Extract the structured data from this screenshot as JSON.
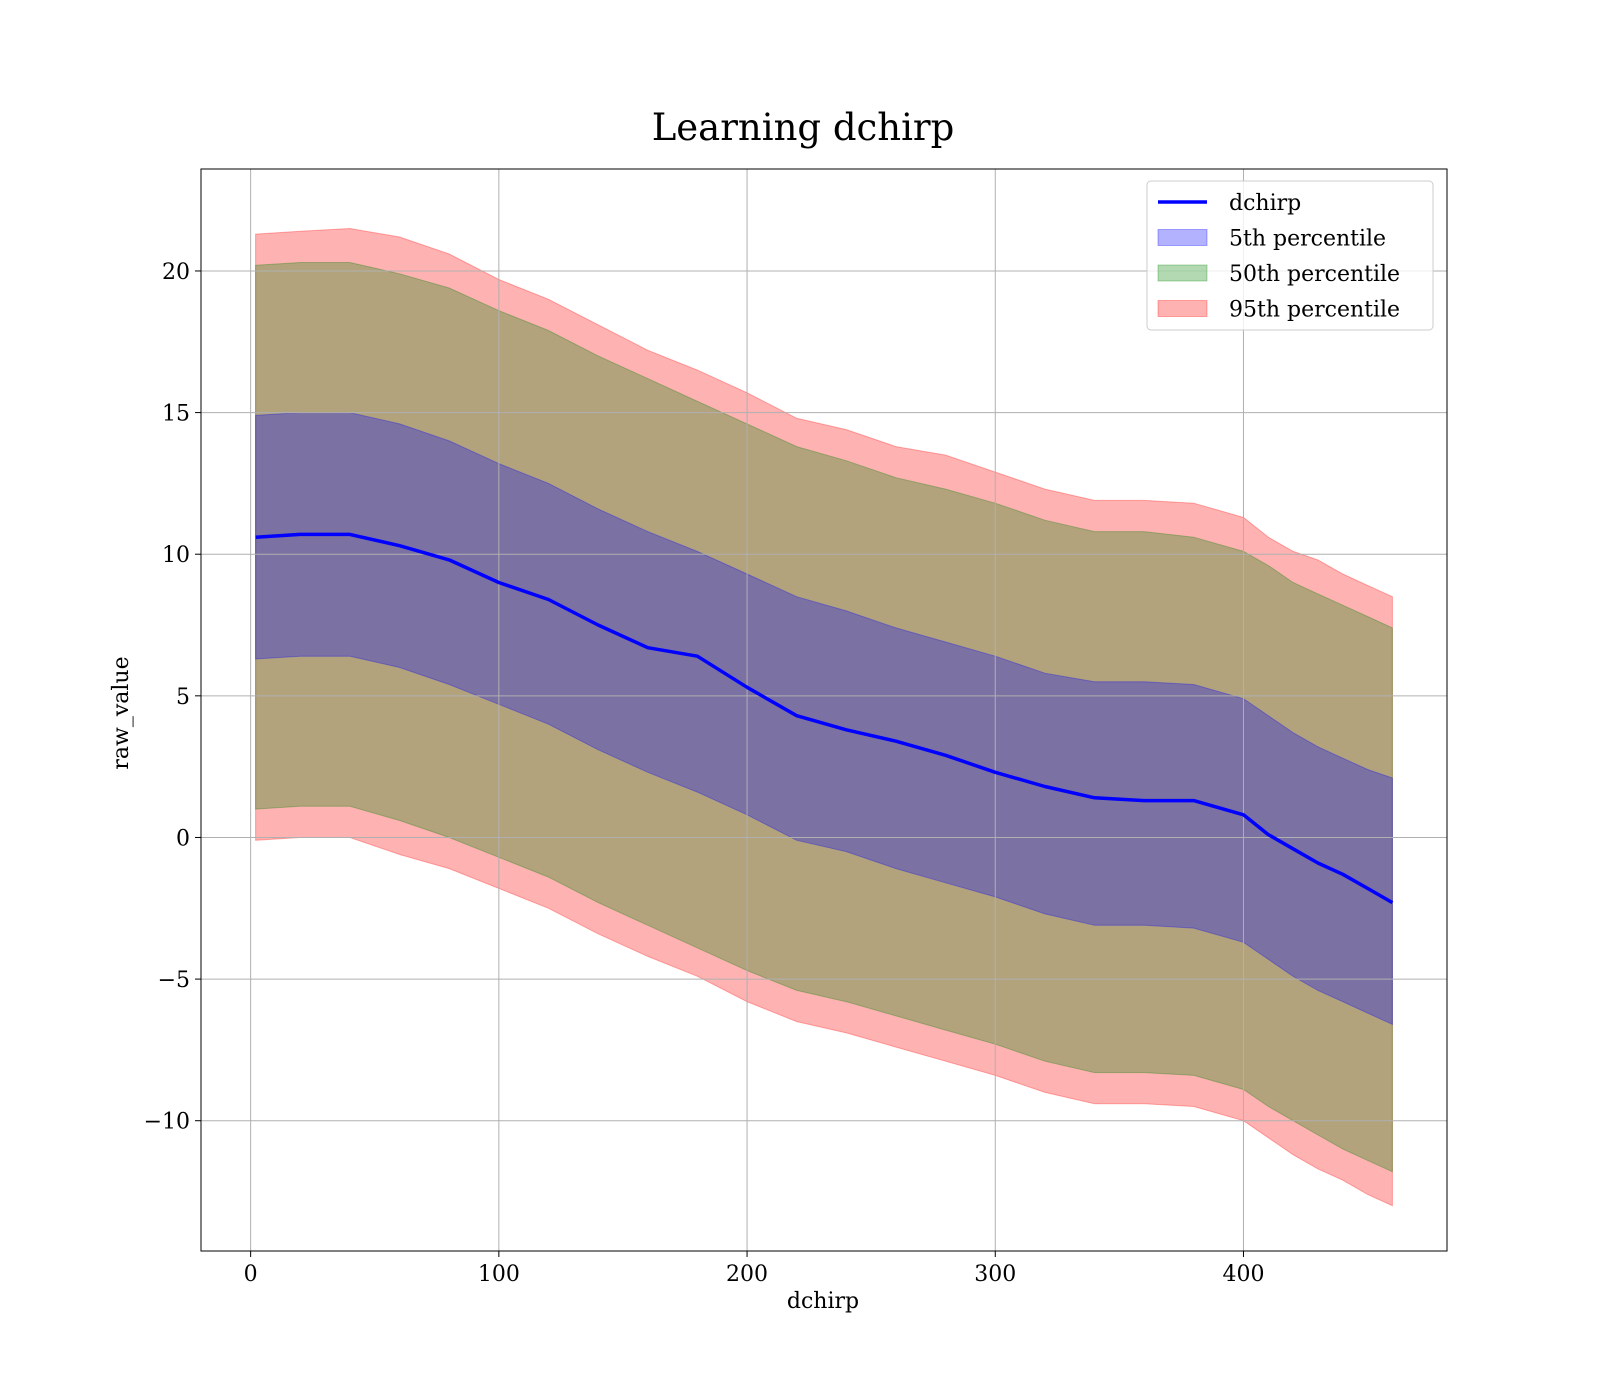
{
  "chart_data": {
    "type": "area",
    "title": "Learning dchirp",
    "xlabel": "dchirp",
    "ylabel": "raw_value",
    "xlim": [
      -20,
      482
    ],
    "ylim": [
      -14.6,
      23.6
    ],
    "xticks": [
      0,
      100,
      200,
      300,
      400
    ],
    "yticks": [
      -10,
      -5,
      0,
      5,
      10,
      15,
      20
    ],
    "xtick_labels": [
      "0",
      "100",
      "200",
      "300",
      "400"
    ],
    "ytick_labels": [
      "−10",
      "−5",
      "0",
      "5",
      "10",
      "15",
      "20"
    ],
    "grid": true,
    "legend_position": "top-right",
    "x": [
      2,
      20,
      40,
      60,
      80,
      100,
      120,
      140,
      160,
      180,
      200,
      220,
      240,
      260,
      280,
      300,
      320,
      340,
      360,
      380,
      400,
      410,
      420,
      430,
      440,
      450,
      460
    ],
    "median_line": {
      "name": "dchirp",
      "color": "#0000ff",
      "values": [
        10.6,
        10.7,
        10.7,
        10.3,
        9.8,
        9.0,
        8.4,
        7.5,
        6.7,
        6.4,
        5.3,
        4.3,
        3.8,
        3.4,
        2.9,
        2.3,
        1.8,
        1.4,
        1.3,
        1.3,
        0.8,
        0.1,
        -0.4,
        -0.9,
        -1.3,
        -1.8,
        -2.3
      ]
    },
    "bands": [
      {
        "name": "95th percentile",
        "color": "#ff0000",
        "alpha": 0.3,
        "upper": [
          21.3,
          21.4,
          21.5,
          21.2,
          20.6,
          19.7,
          19.0,
          18.1,
          17.2,
          16.5,
          15.7,
          14.8,
          14.4,
          13.8,
          13.5,
          12.9,
          12.3,
          11.9,
          11.9,
          11.8,
          11.3,
          10.6,
          10.1,
          9.8,
          9.3,
          8.9,
          8.5
        ],
        "lower": [
          -0.1,
          0.0,
          0.0,
          -0.6,
          -1.1,
          -1.8,
          -2.5,
          -3.4,
          -4.2,
          -4.9,
          -5.8,
          -6.5,
          -6.9,
          -7.4,
          -7.9,
          -8.4,
          -9.0,
          -9.4,
          -9.4,
          -9.5,
          -10.0,
          -10.6,
          -11.2,
          -11.7,
          -12.1,
          -12.6,
          -13.0
        ]
      },
      {
        "name": "50th percentile",
        "color": "#008000",
        "alpha": 0.3,
        "upper": [
          20.2,
          20.3,
          20.3,
          19.9,
          19.4,
          18.6,
          17.9,
          17.0,
          16.2,
          15.4,
          14.6,
          13.8,
          13.3,
          12.7,
          12.3,
          11.8,
          11.2,
          10.8,
          10.8,
          10.6,
          10.1,
          9.6,
          9.0,
          8.6,
          8.2,
          7.8,
          7.4
        ],
        "lower": [
          1.0,
          1.1,
          1.1,
          0.6,
          0.0,
          -0.7,
          -1.4,
          -2.3,
          -3.1,
          -3.9,
          -4.7,
          -5.4,
          -5.8,
          -6.3,
          -6.8,
          -7.3,
          -7.9,
          -8.3,
          -8.3,
          -8.4,
          -8.9,
          -9.5,
          -10.0,
          -10.5,
          -11.0,
          -11.4,
          -11.8
        ]
      },
      {
        "name": "5th percentile",
        "color": "#0000ff",
        "alpha": 0.3,
        "upper": [
          14.9,
          15.0,
          15.0,
          14.6,
          14.0,
          13.2,
          12.5,
          11.6,
          10.8,
          10.1,
          9.3,
          8.5,
          8.0,
          7.4,
          6.9,
          6.4,
          5.8,
          5.5,
          5.5,
          5.4,
          4.9,
          4.3,
          3.7,
          3.2,
          2.8,
          2.4,
          2.1
        ],
        "lower": [
          6.3,
          6.4,
          6.4,
          6.0,
          5.4,
          4.7,
          4.0,
          3.1,
          2.3,
          1.6,
          0.8,
          -0.1,
          -0.5,
          -1.1,
          -1.6,
          -2.1,
          -2.7,
          -3.1,
          -3.1,
          -3.2,
          -3.7,
          -4.3,
          -4.9,
          -5.4,
          -5.8,
          -6.2,
          -6.6
        ]
      }
    ],
    "legend": [
      {
        "label": "dchirp",
        "kind": "line",
        "color": "#0000ff"
      },
      {
        "label": "5th percentile",
        "kind": "patch",
        "color": "#0000ff"
      },
      {
        "label": "50th percentile",
        "kind": "patch",
        "color": "#008000"
      },
      {
        "label": "95th percentile",
        "kind": "patch",
        "color": "#ff0000"
      }
    ]
  }
}
